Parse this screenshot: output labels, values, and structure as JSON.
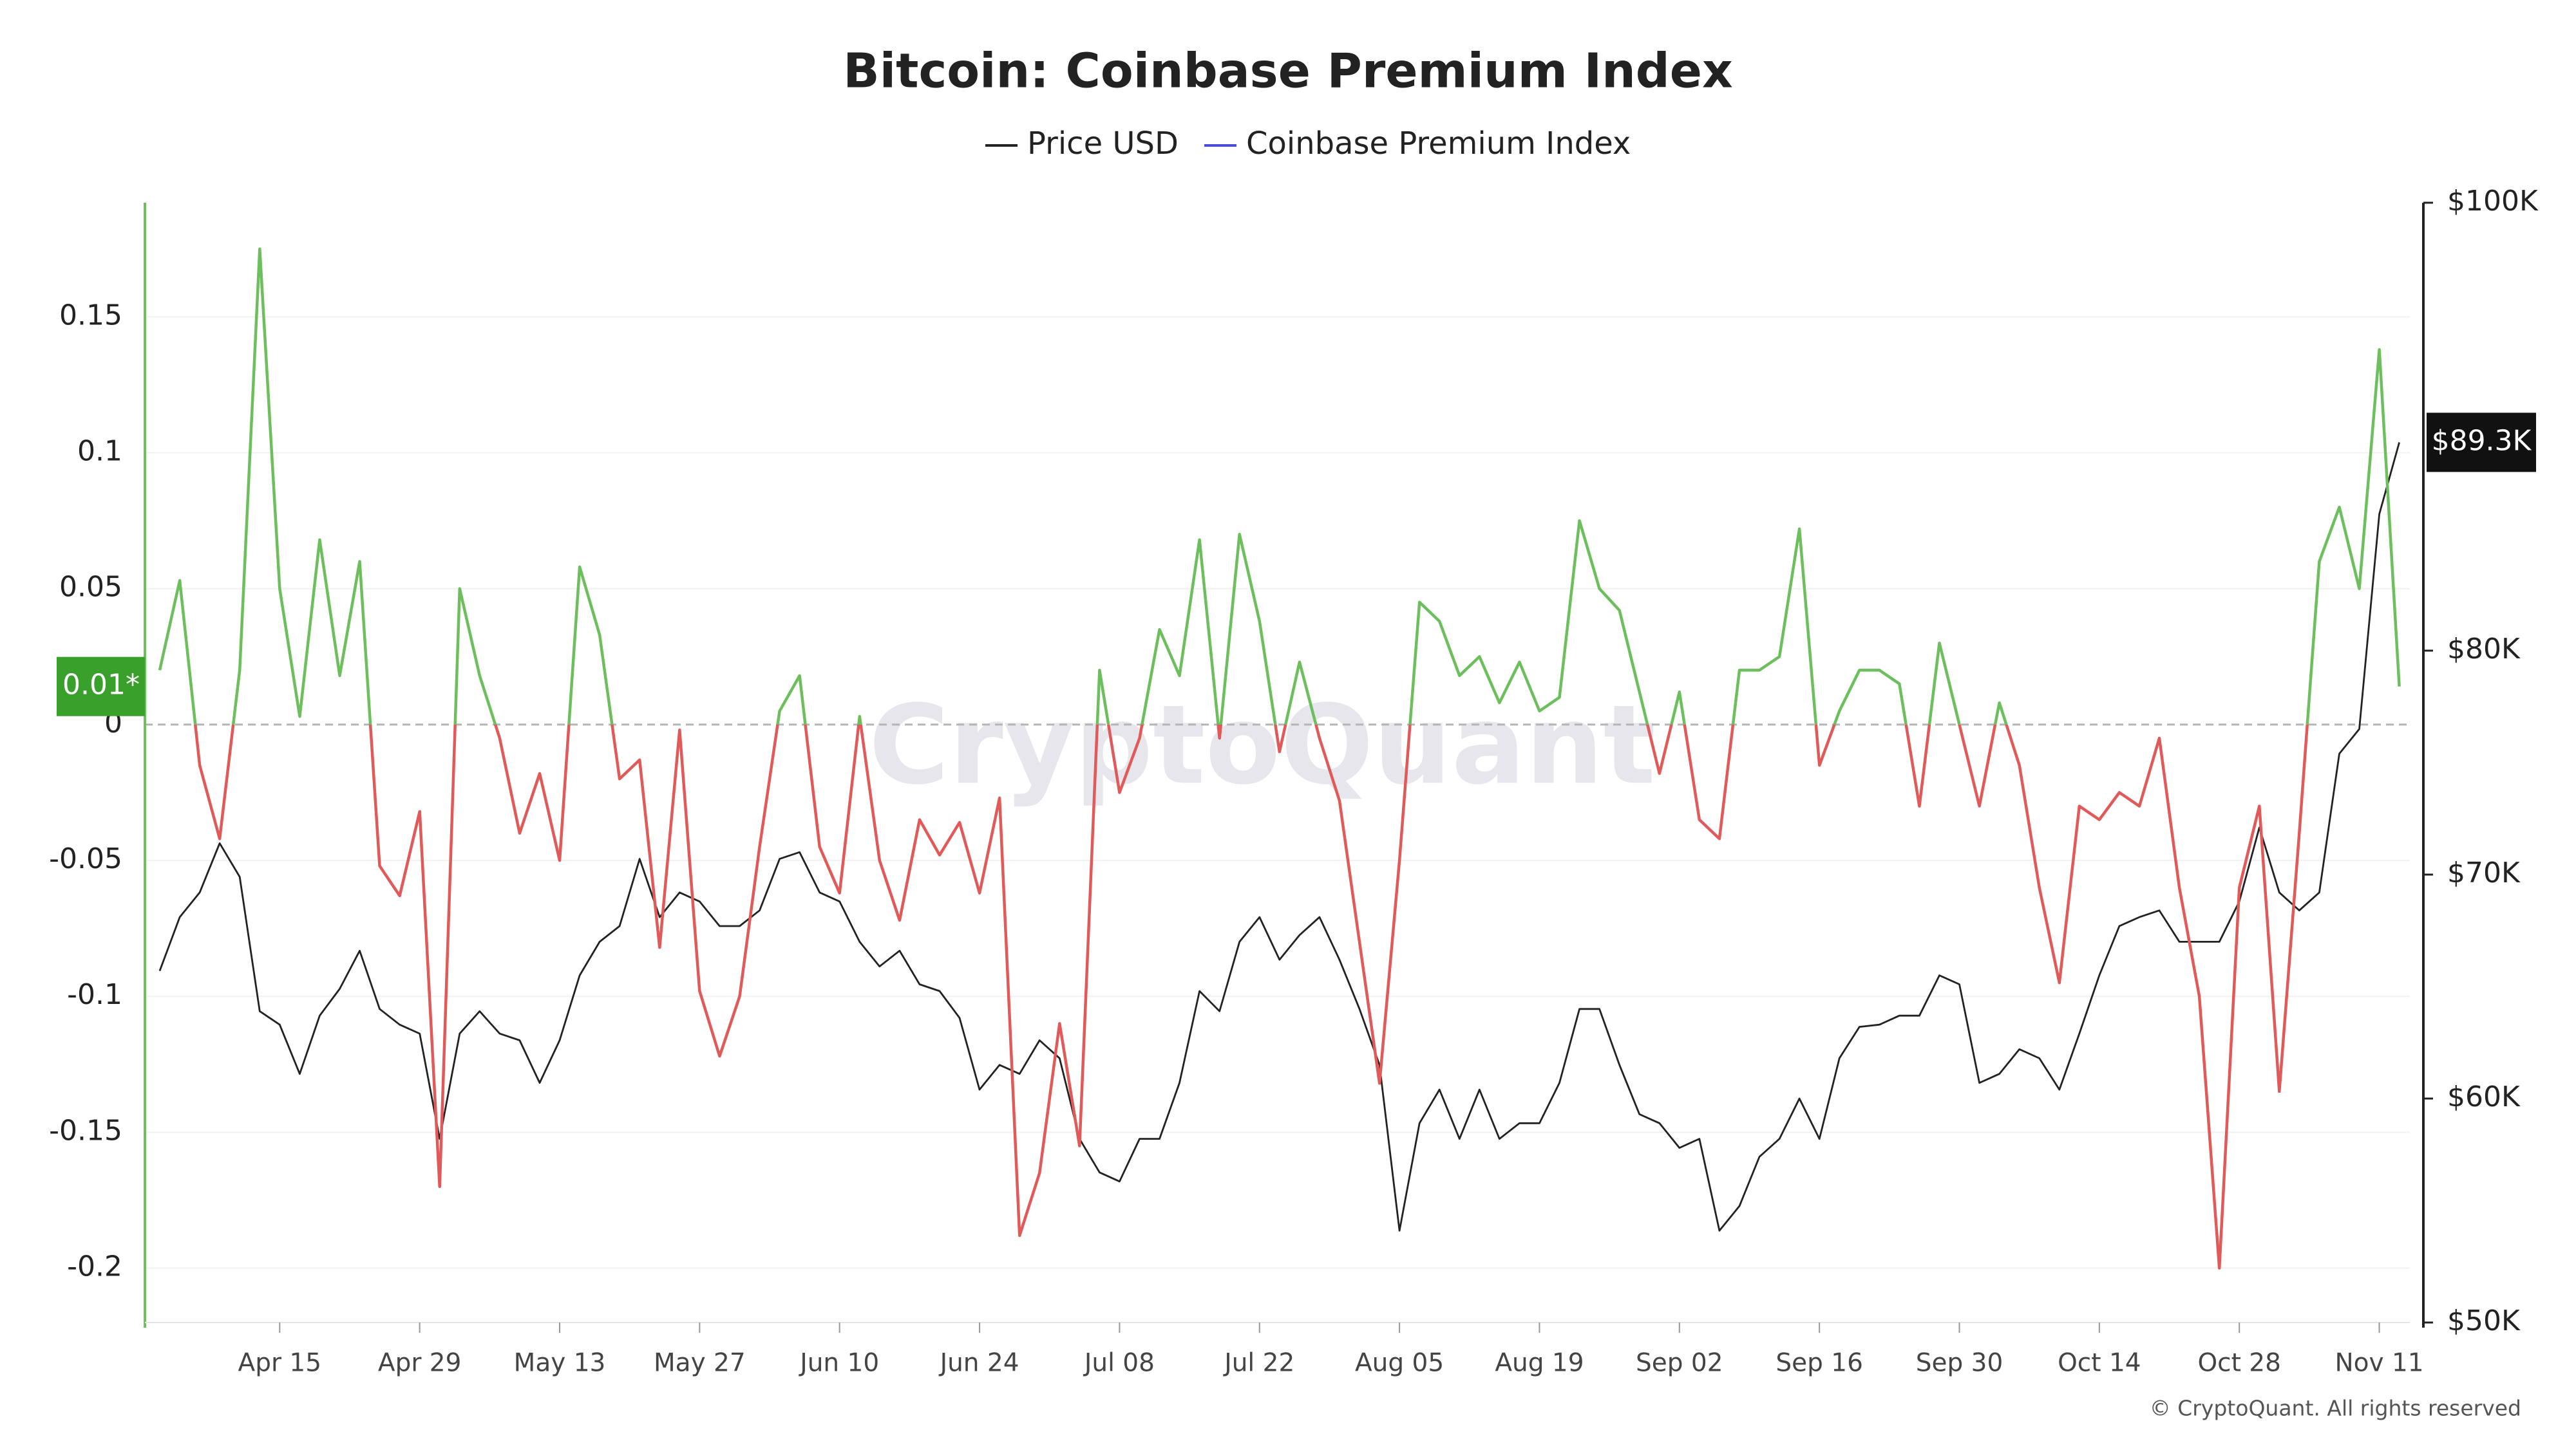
{
  "chart_data": {
    "type": "line",
    "title": "Bitcoin: Coinbase Premium Index",
    "watermark": "CryptoQuant",
    "copyright": "© CryptoQuant. All rights reserved",
    "categories": [
      null,
      null,
      null,
      null,
      null,
      null,
      "Apr 15",
      null,
      null,
      null,
      null,
      null,
      null,
      "Apr 29",
      null,
      null,
      null,
      null,
      null,
      null,
      "May 13",
      null,
      null,
      null,
      null,
      null,
      null,
      "May 27",
      null,
      null,
      null,
      null,
      null,
      null,
      "Jun 10",
      null,
      null,
      null,
      null,
      null,
      null,
      "Jun 24",
      null,
      null,
      null,
      null,
      null,
      null,
      "Jul 08",
      null,
      null,
      null,
      null,
      null,
      null,
      "Jul 22",
      null,
      null,
      null,
      null,
      null,
      null,
      "Aug 05",
      null,
      null,
      null,
      null,
      null,
      null,
      "Aug 19",
      null,
      null,
      null,
      null,
      null,
      null,
      "Sep 02",
      null,
      null,
      null,
      null,
      null,
      null,
      "Sep 16",
      null,
      null,
      null,
      null,
      null,
      null,
      "Sep 30",
      null,
      null,
      null,
      null,
      null,
      null,
      "Oct 14",
      null,
      null,
      null,
      null,
      null,
      null,
      "Oct 28",
      null,
      null,
      null,
      null,
      null,
      null,
      "Nov 11",
      null
    ],
    "series": [
      {
        "name": "Price USD",
        "color": "#222222",
        "axis": "y2",
        "current_label": "$89.3K",
        "values": [
          65700,
          68100,
          69200,
          71400,
          69900,
          63900,
          63300,
          61100,
          63700,
          64900,
          66600,
          64000,
          63300,
          62900,
          58200,
          62900,
          63900,
          62900,
          62600,
          60700,
          62600,
          65500,
          67000,
          67700,
          70700,
          68100,
          69200,
          68800,
          67700,
          67700,
          68400,
          70700,
          71000,
          69200,
          68800,
          67000,
          65900,
          66600,
          65100,
          64800,
          63600,
          60400,
          61500,
          61100,
          62600,
          61800,
          58200,
          56700,
          56300,
          58200,
          58200,
          60700,
          64800,
          63900,
          67000,
          68100,
          66200,
          67300,
          68100,
          66200,
          64000,
          61500,
          54100,
          58900,
          60400,
          58200,
          60400,
          58200,
          58900,
          58900,
          60700,
          64000,
          64000,
          61500,
          59300,
          58900,
          57800,
          58200,
          54100,
          55200,
          57400,
          58200,
          60000,
          58200,
          61800,
          63200,
          63300,
          63700,
          63700,
          65500,
          65100,
          60700,
          61100,
          62200,
          61800,
          60400,
          62900,
          65500,
          67700,
          68100,
          68400,
          67000,
          67000,
          67000,
          68800,
          72100,
          69200,
          68400,
          69200,
          75400,
          76500,
          86100,
          89300
        ]
      },
      {
        "name": "Coinbase Premium Index",
        "color": "#4b4bd6",
        "up_color": "#6cbf5c",
        "down_color": "#e05a5a",
        "current_label": "0.01*",
        "values": [
          0.02,
          0.053,
          -0.015,
          -0.042,
          0.02,
          0.175,
          0.05,
          0.003,
          0.068,
          0.018,
          0.06,
          -0.052,
          -0.063,
          -0.032,
          -0.17,
          0.05,
          0.018,
          -0.005,
          -0.04,
          -0.018,
          -0.05,
          0.058,
          0.033,
          -0.02,
          -0.013,
          -0.082,
          -0.002,
          -0.098,
          -0.122,
          -0.1,
          -0.045,
          0.005,
          0.018,
          -0.045,
          -0.062,
          0.003,
          -0.05,
          -0.072,
          -0.035,
          -0.048,
          -0.036,
          -0.062,
          -0.027,
          -0.188,
          -0.165,
          -0.11,
          -0.155,
          0.02,
          -0.025,
          -0.005,
          0.035,
          0.018,
          0.068,
          -0.005,
          0.07,
          0.038,
          -0.01,
          0.023,
          -0.005,
          -0.028,
          -0.08,
          -0.132,
          -0.05,
          0.045,
          0.038,
          0.018,
          0.025,
          0.008,
          0.023,
          0.005,
          0.01,
          0.075,
          0.05,
          0.042,
          0.012,
          -0.018,
          0.012,
          -0.035,
          -0.042,
          0.02,
          0.02,
          0.025,
          0.072,
          -0.015,
          0.005,
          0.02,
          0.02,
          0.015,
          -0.03,
          0.03,
          0,
          -0.03,
          0.008,
          -0.015,
          -0.06,
          -0.095,
          -0.03,
          -0.035,
          -0.025,
          -0.03,
          -0.005,
          -0.06,
          -0.1,
          -0.2,
          -0.06,
          -0.03,
          -0.135,
          -0.04,
          0.06,
          0.08,
          0.05,
          0.138,
          0.014
        ]
      }
    ],
    "ylim": [
      -0.22,
      0.192
    ],
    "yticks": [
      -0.2,
      -0.15,
      -0.1,
      -0.05,
      0,
      0.05,
      0.1,
      0.15
    ],
    "y2lim": [
      50000,
      100000
    ],
    "y2ticks": [
      {
        "value": 50000,
        "label": "$50K"
      },
      {
        "value": 60000,
        "label": "$60K"
      },
      {
        "value": 70000,
        "label": "$70K"
      },
      {
        "value": 80000,
        "label": "$80K"
      },
      {
        "value": 100000,
        "label": "$100K"
      }
    ],
    "grid": true,
    "legend": "top"
  }
}
